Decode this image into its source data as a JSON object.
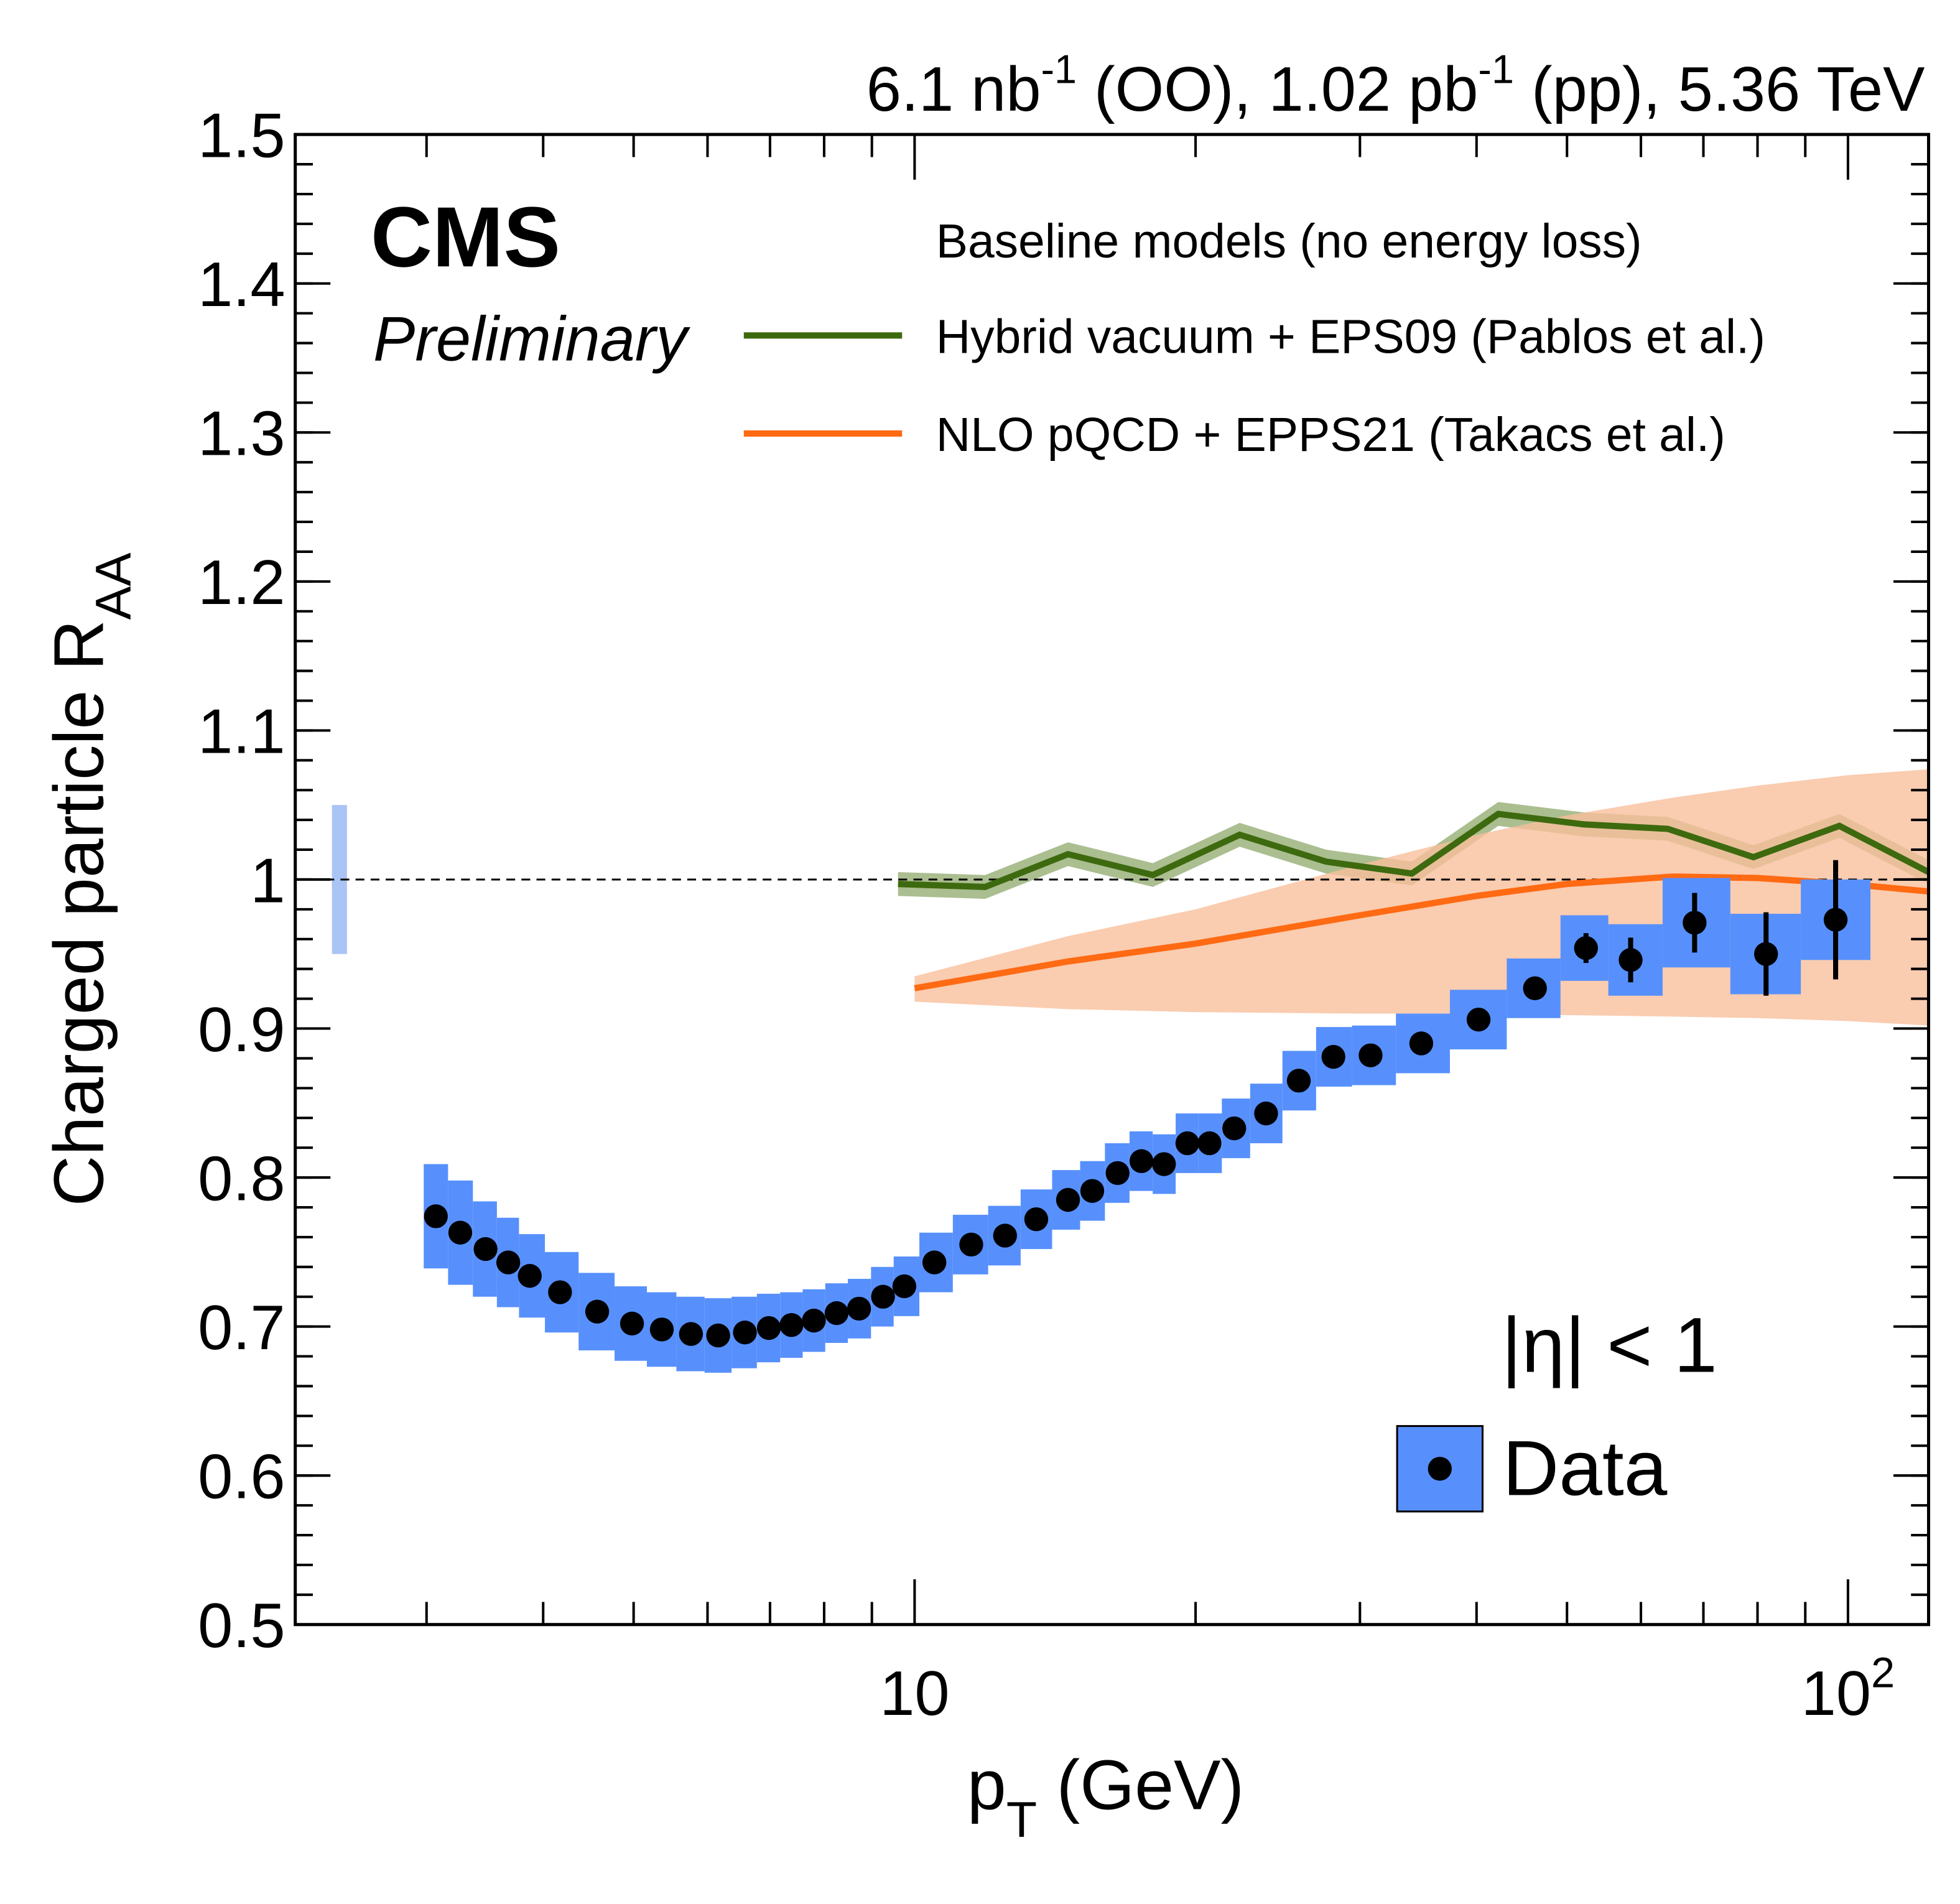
{
  "chart_data": {
    "type": "scatter",
    "lumi_label": [
      "6.1 nb",
      "-1",
      " (OO), 1.02 pb",
      "-1",
      " (pp), 5.36 TeV"
    ],
    "experiment": "CMS",
    "status": "Preliminary",
    "ylabel": {
      "text": "Charged particle R",
      "sub": "AA"
    },
    "xlabel": {
      "text": "p",
      "sub": "T",
      "suffix": " (GeV)"
    },
    "legend_title": "Baseline models (no energy loss)",
    "annotation": "|η| < 1",
    "xlog": true,
    "xlim": [
      2.17,
      122
    ],
    "ylim": [
      0.5,
      1.5
    ],
    "xticks": [
      10,
      {
        "value": 100,
        "label": "10",
        "exponent": "2"
      }
    ],
    "xminor": [
      3,
      4,
      5,
      6,
      7,
      8,
      9,
      20,
      30,
      40,
      50,
      60,
      70,
      80,
      90
    ],
    "yticks": [
      0.5,
      0.6,
      0.7,
      0.8,
      0.9,
      1,
      1.1,
      1.2,
      1.3,
      1.4,
      1.5
    ],
    "yminor_step": 0.02,
    "reference_line": 1,
    "normalization": {
      "x": 2.42,
      "value": 1,
      "error": 0.05,
      "color": "#aac4f5"
    },
    "series": [
      {
        "name": "Data",
        "kind": "points",
        "color": "#5790fc",
        "marker_color": "#000000",
        "x": [
          3.07,
          3.26,
          3.47,
          3.67,
          3.87,
          4.17,
          4.57,
          4.98,
          5.36,
          5.76,
          6.16,
          6.58,
          6.98,
          7.38,
          7.8,
          8.25,
          8.72,
          9.25,
          9.75,
          10.5,
          11.5,
          12.5,
          13.5,
          14.6,
          15.5,
          16.5,
          17.5,
          18.5,
          19.6,
          20.7,
          22,
          23.8,
          25.8,
          28.1,
          30.8,
          34.9,
          40.2,
          46.2,
          52.4,
          58.5,
          68.5,
          81.7,
          97
        ],
        "values": [
          0.774,
          0.763,
          0.752,
          0.743,
          0.734,
          0.723,
          0.71,
          0.702,
          0.698,
          0.695,
          0.694,
          0.696,
          0.699,
          0.701,
          0.704,
          0.709,
          0.712,
          0.72,
          0.727,
          0.743,
          0.755,
          0.761,
          0.772,
          0.785,
          0.791,
          0.803,
          0.811,
          0.809,
          0.823,
          0.823,
          0.833,
          0.843,
          0.865,
          0.881,
          0.882,
          0.89,
          0.906,
          0.927,
          0.954,
          0.946,
          0.971,
          0.95,
          0.973
        ],
        "stat": [
          0.002,
          0.002,
          0.002,
          0.002,
          0.002,
          0.002,
          0.002,
          0.002,
          0.002,
          0.002,
          0.002,
          0.002,
          0.002,
          0.002,
          0.002,
          0.002,
          0.002,
          0.002,
          0.002,
          0.002,
          0.002,
          0.002,
          0.002,
          0.002,
          0.002,
          0.002,
          0.002,
          0.002,
          0.002,
          0.002,
          0.002,
          0.002,
          0.002,
          0.002,
          0.002,
          0.002,
          0.002,
          0.002,
          0.01,
          0.015,
          0.02,
          0.028,
          0.04
        ],
        "syst": [
          0.035,
          0.035,
          0.032,
          0.03,
          0.028,
          0.027,
          0.026,
          0.025,
          0.025,
          0.025,
          0.025,
          0.024,
          0.023,
          0.022,
          0.021,
          0.02,
          0.02,
          0.02,
          0.02,
          0.02,
          0.02,
          0.02,
          0.02,
          0.02,
          0.02,
          0.02,
          0.02,
          0.02,
          0.02,
          0.02,
          0.02,
          0.02,
          0.02,
          0.02,
          0.02,
          0.02,
          0.02,
          0.02,
          0.022,
          0.024,
          0.03,
          0.027,
          0.027
        ]
      },
      {
        "name": "Hybrid vacuum + EPS09 (Pablos et al.)",
        "kind": "line",
        "color": "#3d6a0e",
        "band_color": "#8fa86b",
        "x": [
          9.6,
          11.9,
          14.6,
          18,
          22.3,
          27.6,
          34.1,
          42.2,
          52.1,
          64.1,
          79.2,
          97.9,
          122
        ],
        "values": [
          0.997,
          0.995,
          1.017,
          1.003,
          1.03,
          1.012,
          1.004,
          1.044,
          1.037,
          1.034,
          1.015,
          1.036,
          1.005
        ],
        "error": [
          0.008,
          0.008,
          0.008,
          0.008,
          0.008,
          0.008,
          0.008,
          0.008,
          0.008,
          0.008,
          0.008,
          0.008,
          0.008
        ]
      },
      {
        "name": "NLO pQCD + EPPS21 (Takacs et al.)",
        "kind": "line",
        "color": "#ff6a13",
        "band_color": "#f9bf9c",
        "x": [
          10,
          14.6,
          20,
          30,
          40,
          50,
          65,
          80,
          100,
          122
        ],
        "values": [
          0.927,
          0.945,
          0.957,
          0.976,
          0.989,
          0.997,
          1.002,
          1.001,
          0.997,
          0.992
        ],
        "lower": [
          0.918,
          0.913,
          0.911,
          0.91,
          0.91,
          0.909,
          0.908,
          0.907,
          0.905,
          0.902
        ],
        "upper": [
          0.935,
          0.962,
          0.98,
          1.01,
          1.03,
          1.043,
          1.055,
          1.063,
          1.07,
          1.074
        ]
      }
    ]
  }
}
